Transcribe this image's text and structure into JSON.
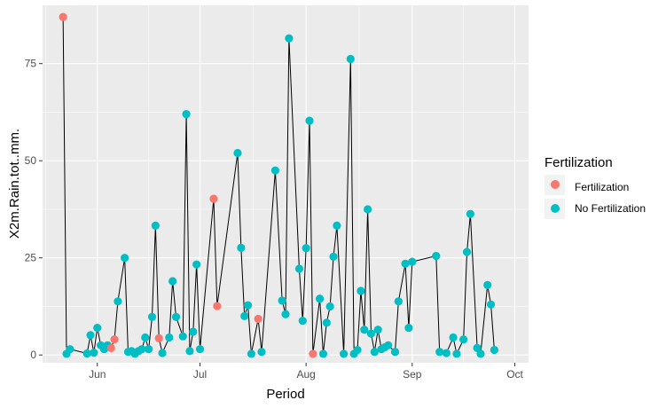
{
  "chart_data": {
    "type": "line",
    "xlabel": "Period",
    "ylabel": "X2m.Rain.tot..mm.",
    "x_ticks": [
      "Jun",
      "Jul",
      "Aug",
      "Sep",
      "Oct"
    ],
    "x_tick_dates": [
      "2015-06-01",
      "2015-07-01",
      "2015-08-01",
      "2015-09-01",
      "2015-10-01"
    ],
    "y_ticks": [
      0,
      25,
      50,
      75
    ],
    "ylim": [
      -2,
      90
    ],
    "xlim": [
      "2015-05-16",
      "2015-10-05"
    ],
    "grid": true,
    "legend": {
      "title": "Fertilization",
      "position": "right",
      "entries": [
        {
          "label": "Fertilization",
          "color": "#F8766D"
        },
        {
          "label": "No Fertilization",
          "color": "#00BFC4"
        }
      ]
    },
    "colors": {
      "Fertilization": "#F8766D",
      "No Fertilization": "#00BFC4",
      "line": "#000000",
      "panel": "#EBEBEB",
      "grid": "#FFFFFF"
    },
    "points": [
      {
        "x": "2015-05-22",
        "y": 87,
        "group": "Fertilization"
      },
      {
        "x": "2015-05-23",
        "y": 0.3,
        "group": "No Fertilization"
      },
      {
        "x": "2015-05-24",
        "y": 1.5,
        "group": "No Fertilization"
      },
      {
        "x": "2015-05-29",
        "y": 0.4,
        "group": "No Fertilization"
      },
      {
        "x": "2015-05-30",
        "y": 5.1,
        "group": "No Fertilization"
      },
      {
        "x": "2015-05-31",
        "y": 0.6,
        "group": "No Fertilization"
      },
      {
        "x": "2015-06-01",
        "y": 7,
        "group": "No Fertilization"
      },
      {
        "x": "2015-06-02",
        "y": 2.5,
        "group": "No Fertilization"
      },
      {
        "x": "2015-06-03",
        "y": 1.5,
        "group": "No Fertilization"
      },
      {
        "x": "2015-06-04",
        "y": 2.5,
        "group": "No Fertilization"
      },
      {
        "x": "2015-06-05",
        "y": 1.8,
        "group": "Fertilization"
      },
      {
        "x": "2015-06-06",
        "y": 4,
        "group": "Fertilization"
      },
      {
        "x": "2015-06-07",
        "y": 13.8,
        "group": "No Fertilization"
      },
      {
        "x": "2015-06-09",
        "y": 25,
        "group": "No Fertilization"
      },
      {
        "x": "2015-06-10",
        "y": 0.8,
        "group": "No Fertilization"
      },
      {
        "x": "2015-06-11",
        "y": 1,
        "group": "No Fertilization"
      },
      {
        "x": "2015-06-12",
        "y": 0.3,
        "group": "No Fertilization"
      },
      {
        "x": "2015-06-13",
        "y": 1,
        "group": "No Fertilization"
      },
      {
        "x": "2015-06-14",
        "y": 1.5,
        "group": "No Fertilization"
      },
      {
        "x": "2015-06-15",
        "y": 4.5,
        "group": "No Fertilization"
      },
      {
        "x": "2015-06-16",
        "y": 1.5,
        "group": "No Fertilization"
      },
      {
        "x": "2015-06-17",
        "y": 9.8,
        "group": "No Fertilization"
      },
      {
        "x": "2015-06-18",
        "y": 33.3,
        "group": "No Fertilization"
      },
      {
        "x": "2015-06-19",
        "y": 4.3,
        "group": "Fertilization"
      },
      {
        "x": "2015-06-20",
        "y": 0.5,
        "group": "No Fertilization"
      },
      {
        "x": "2015-06-22",
        "y": 4.5,
        "group": "No Fertilization"
      },
      {
        "x": "2015-06-23",
        "y": 19,
        "group": "No Fertilization"
      },
      {
        "x": "2015-06-24",
        "y": 9.8,
        "group": "No Fertilization"
      },
      {
        "x": "2015-06-26",
        "y": 4.8,
        "group": "No Fertilization"
      },
      {
        "x": "2015-06-27",
        "y": 62,
        "group": "No Fertilization"
      },
      {
        "x": "2015-06-28",
        "y": 1,
        "group": "No Fertilization"
      },
      {
        "x": "2015-06-29",
        "y": 6,
        "group": "No Fertilization"
      },
      {
        "x": "2015-06-30",
        "y": 23.3,
        "group": "No Fertilization"
      },
      {
        "x": "2015-07-01",
        "y": 1.5,
        "group": "No Fertilization"
      },
      {
        "x": "2015-07-05",
        "y": 40.2,
        "group": "Fertilization"
      },
      {
        "x": "2015-07-06",
        "y": 12.6,
        "group": "Fertilization"
      },
      {
        "x": "2015-07-12",
        "y": 52,
        "group": "No Fertilization"
      },
      {
        "x": "2015-07-13",
        "y": 27.6,
        "group": "No Fertilization"
      },
      {
        "x": "2015-07-14",
        "y": 10,
        "group": "No Fertilization"
      },
      {
        "x": "2015-07-15",
        "y": 12.8,
        "group": "No Fertilization"
      },
      {
        "x": "2015-07-16",
        "y": 0.3,
        "group": "No Fertilization"
      },
      {
        "x": "2015-07-18",
        "y": 9.3,
        "group": "Fertilization"
      },
      {
        "x": "2015-07-19",
        "y": 0.8,
        "group": "No Fertilization"
      },
      {
        "x": "2015-07-23",
        "y": 47.5,
        "group": "No Fertilization"
      },
      {
        "x": "2015-07-25",
        "y": 14,
        "group": "No Fertilization"
      },
      {
        "x": "2015-07-26",
        "y": 10.5,
        "group": "No Fertilization"
      },
      {
        "x": "2015-07-27",
        "y": 81.5,
        "group": "No Fertilization"
      },
      {
        "x": "2015-07-30",
        "y": 22.2,
        "group": "No Fertilization"
      },
      {
        "x": "2015-07-31",
        "y": 8.8,
        "group": "No Fertilization"
      },
      {
        "x": "2015-08-01",
        "y": 27.5,
        "group": "No Fertilization"
      },
      {
        "x": "2015-08-02",
        "y": 60.3,
        "group": "No Fertilization"
      },
      {
        "x": "2015-08-03",
        "y": 0.3,
        "group": "Fertilization"
      },
      {
        "x": "2015-08-05",
        "y": 14.5,
        "group": "No Fertilization"
      },
      {
        "x": "2015-08-06",
        "y": 0.3,
        "group": "No Fertilization"
      },
      {
        "x": "2015-08-07",
        "y": 8.3,
        "group": "No Fertilization"
      },
      {
        "x": "2015-08-08",
        "y": 12.5,
        "group": "No Fertilization"
      },
      {
        "x": "2015-08-09",
        "y": 25.3,
        "group": "No Fertilization"
      },
      {
        "x": "2015-08-10",
        "y": 33.3,
        "group": "No Fertilization"
      },
      {
        "x": "2015-08-12",
        "y": 0.3,
        "group": "No Fertilization"
      },
      {
        "x": "2015-08-14",
        "y": 76.2,
        "group": "No Fertilization"
      },
      {
        "x": "2015-08-15",
        "y": 0.3,
        "group": "No Fertilization"
      },
      {
        "x": "2015-08-16",
        "y": 1.3,
        "group": "No Fertilization"
      },
      {
        "x": "2015-08-17",
        "y": 16.5,
        "group": "No Fertilization"
      },
      {
        "x": "2015-08-18",
        "y": 6.5,
        "group": "No Fertilization"
      },
      {
        "x": "2015-08-19",
        "y": 37.5,
        "group": "No Fertilization"
      },
      {
        "x": "2015-08-20",
        "y": 5.5,
        "group": "No Fertilization"
      },
      {
        "x": "2015-08-21",
        "y": 0.8,
        "group": "No Fertilization"
      },
      {
        "x": "2015-08-22",
        "y": 6.5,
        "group": "No Fertilization"
      },
      {
        "x": "2015-08-23",
        "y": 1.5,
        "group": "No Fertilization"
      },
      {
        "x": "2015-08-24",
        "y": 2,
        "group": "No Fertilization"
      },
      {
        "x": "2015-08-25",
        "y": 2.5,
        "group": "No Fertilization"
      },
      {
        "x": "2015-08-27",
        "y": 0.8,
        "group": "No Fertilization"
      },
      {
        "x": "2015-08-28",
        "y": 13.8,
        "group": "No Fertilization"
      },
      {
        "x": "2015-08-30",
        "y": 23.5,
        "group": "No Fertilization"
      },
      {
        "x": "2015-08-31",
        "y": 7,
        "group": "No Fertilization"
      },
      {
        "x": "2015-09-01",
        "y": 24,
        "group": "No Fertilization"
      },
      {
        "x": "2015-09-08",
        "y": 25.5,
        "group": "No Fertilization"
      },
      {
        "x": "2015-09-09",
        "y": 0.8,
        "group": "No Fertilization"
      },
      {
        "x": "2015-09-11",
        "y": 0.5,
        "group": "No Fertilization"
      },
      {
        "x": "2015-09-13",
        "y": 4.5,
        "group": "No Fertilization"
      },
      {
        "x": "2015-09-14",
        "y": 0.3,
        "group": "No Fertilization"
      },
      {
        "x": "2015-09-16",
        "y": 4,
        "group": "No Fertilization"
      },
      {
        "x": "2015-09-17",
        "y": 26.5,
        "group": "No Fertilization"
      },
      {
        "x": "2015-09-18",
        "y": 36.3,
        "group": "No Fertilization"
      },
      {
        "x": "2015-09-20",
        "y": 1.8,
        "group": "No Fertilization"
      },
      {
        "x": "2015-09-21",
        "y": 0.3,
        "group": "No Fertilization"
      },
      {
        "x": "2015-09-23",
        "y": 18,
        "group": "No Fertilization"
      },
      {
        "x": "2015-09-24",
        "y": 13,
        "group": "No Fertilization"
      },
      {
        "x": "2015-09-25",
        "y": 1.3,
        "group": "No Fertilization"
      }
    ]
  }
}
